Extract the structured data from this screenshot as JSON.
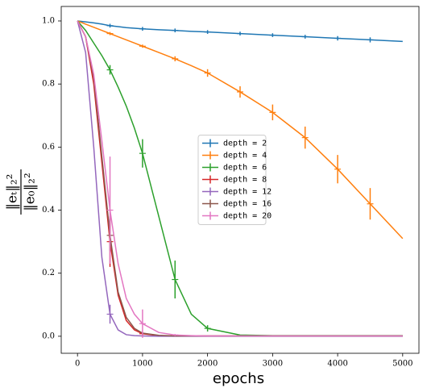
{
  "chart_data": {
    "type": "line",
    "x_label": "epochs",
    "y_label": {
      "numerator": "‖eₜ‖₂²",
      "denominator": "‖e₀‖₂²"
    },
    "x": [
      0,
      125,
      250,
      375,
      500,
      625,
      750,
      875,
      1000,
      1250,
      1500,
      1750,
      2000,
      2500,
      3000,
      3500,
      4000,
      4500,
      5000
    ],
    "series": [
      {
        "name": "depth = 2",
        "color": "#1f77b4",
        "values": [
          1.0,
          0.997,
          0.994,
          0.99,
          0.985,
          0.982,
          0.979,
          0.977,
          0.975,
          0.972,
          0.97,
          0.967,
          0.965,
          0.96,
          0.955,
          0.95,
          0.945,
          0.94,
          0.935
        ],
        "errors": [
          null,
          null,
          null,
          null,
          0.006,
          null,
          null,
          null,
          0.006,
          null,
          0.006,
          null,
          0.006,
          0.006,
          0.006,
          0.006,
          0.007,
          0.008,
          null
        ]
      },
      {
        "name": "depth = 4",
        "color": "#ff7f0e",
        "values": [
          1.0,
          0.99,
          0.98,
          0.97,
          0.96,
          0.95,
          0.94,
          0.93,
          0.92,
          0.9,
          0.88,
          0.858,
          0.835,
          0.775,
          0.71,
          0.63,
          0.53,
          0.42,
          0.31
        ],
        "errors": [
          null,
          null,
          null,
          null,
          0.005,
          null,
          null,
          null,
          0.005,
          null,
          0.008,
          null,
          0.012,
          0.018,
          0.025,
          0.035,
          0.045,
          0.05,
          null
        ]
      },
      {
        "name": "depth = 6",
        "color": "#2ca02c",
        "values": [
          1.0,
          0.97,
          0.93,
          0.89,
          0.845,
          0.79,
          0.73,
          0.66,
          0.58,
          0.38,
          0.18,
          0.07,
          0.025,
          0.004,
          0.002,
          0.002,
          0.002,
          0.002,
          0.002
        ],
        "errors": [
          null,
          null,
          null,
          null,
          0.015,
          null,
          null,
          null,
          0.045,
          null,
          0.06,
          null,
          0.01,
          null,
          null,
          null,
          null,
          null,
          null
        ]
      },
      {
        "name": "depth = 8",
        "color": "#d62728",
        "values": [
          1.0,
          0.95,
          0.8,
          0.55,
          0.3,
          0.13,
          0.05,
          0.02,
          0.008,
          0.002,
          0.001,
          0.001,
          0.001,
          0.001,
          0.001,
          0.001,
          0.001,
          0.001,
          0.001
        ],
        "errors": [
          null,
          null,
          null,
          null,
          0.08,
          null,
          null,
          null,
          0.005,
          null,
          null,
          null,
          null,
          null,
          null,
          null,
          null,
          null,
          null
        ]
      },
      {
        "name": "depth = 12",
        "color": "#9467bd",
        "values": [
          1.0,
          0.9,
          0.6,
          0.25,
          0.07,
          0.02,
          0.005,
          0.002,
          0.001,
          0.0,
          0.0,
          0.0,
          0.0,
          0.0,
          0.0,
          0.0,
          0.0,
          0.0,
          0.0
        ],
        "errors": [
          null,
          null,
          null,
          null,
          0.03,
          null,
          null,
          null,
          null,
          null,
          null,
          null,
          null,
          null,
          null,
          null,
          null,
          null,
          null
        ]
      },
      {
        "name": "depth = 16",
        "color": "#8c564b",
        "values": [
          1.0,
          0.95,
          0.82,
          0.57,
          0.32,
          0.14,
          0.06,
          0.025,
          0.01,
          0.003,
          0.001,
          0.001,
          0.001,
          0.001,
          0.001,
          0.001,
          0.001,
          0.001,
          0.001
        ],
        "errors": [
          null,
          null,
          null,
          null,
          0.05,
          null,
          null,
          null,
          null,
          null,
          null,
          null,
          null,
          null,
          null,
          null,
          null,
          null,
          null
        ]
      },
      {
        "name": "depth = 20",
        "color": "#e377c2",
        "values": [
          1.0,
          0.95,
          0.83,
          0.62,
          0.4,
          0.23,
          0.12,
          0.07,
          0.04,
          0.012,
          0.004,
          0.002,
          0.001,
          0.001,
          0.001,
          0.001,
          0.001,
          0.001,
          0.001
        ],
        "errors": [
          null,
          null,
          null,
          null,
          0.17,
          null,
          null,
          null,
          0.045,
          null,
          0.003,
          null,
          null,
          null,
          null,
          null,
          null,
          null,
          null
        ]
      }
    ],
    "xlim": [
      -250,
      5250
    ],
    "ylim": [
      -0.054,
      1.046
    ],
    "xticks": [
      0,
      1000,
      2000,
      3000,
      4000,
      5000
    ],
    "yticks": [
      {
        "value": 0,
        "label": "0.0"
      },
      0.2,
      0.4,
      0.6,
      0.8,
      {
        "value": 1,
        "label": "1.0"
      }
    ],
    "grid": false,
    "legend": "center"
  }
}
